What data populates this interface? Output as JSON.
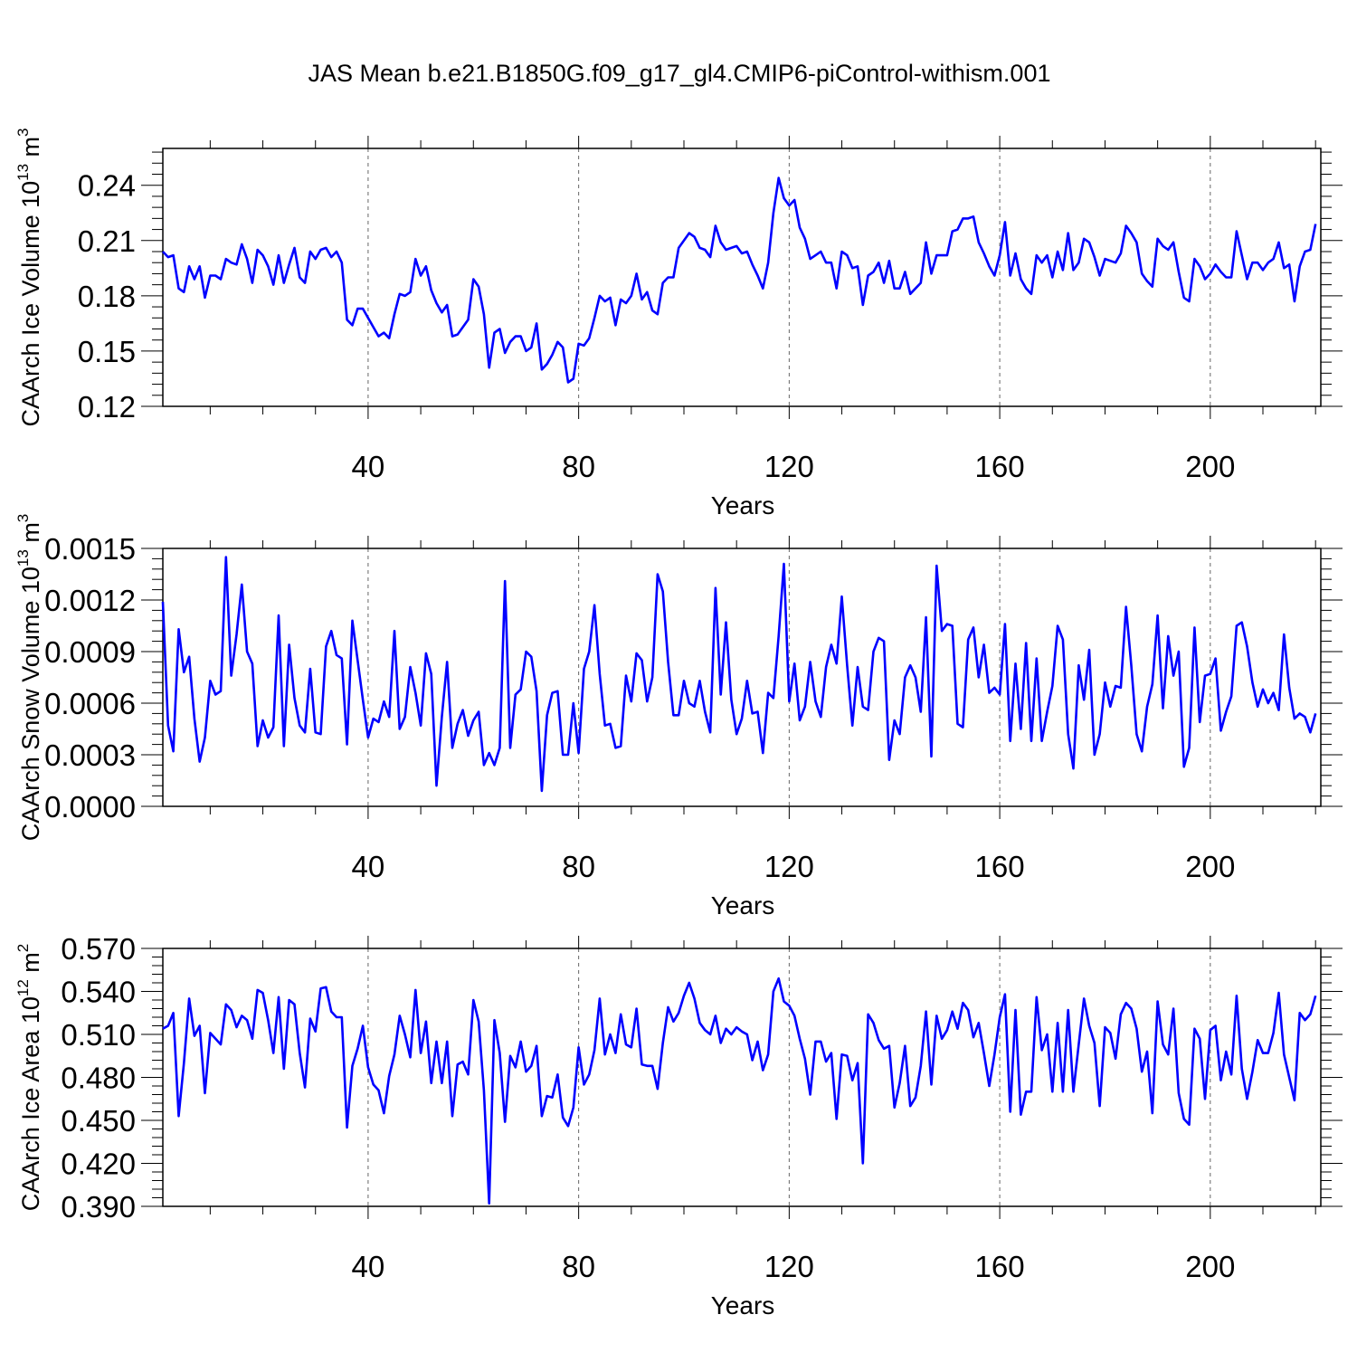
{
  "figure_title": "JAS Mean b.e21.B1850G.f09_g17_gl4.CMIP6-piControl-withism.001",
  "colors": {
    "series": "#0000ff",
    "axes": "#000000",
    "grid": "#666666",
    "background": "#ffffff"
  },
  "chart_data": [
    {
      "type": "line",
      "title": "JAS Mean b.e21.B1850G.f09_g17_gl4.CMIP6-piControl-withism.001",
      "xlabel": "Years",
      "ylabel": "CAArch Ice Volume 10",
      "ylabel_exp": "13",
      "ylabel_unit": " m",
      "ylabel_unit_exp": "3",
      "xlim": [
        1,
        221
      ],
      "ylim": [
        0.12,
        0.26
      ],
      "xticks": [
        40,
        80,
        120,
        160,
        200
      ],
      "xtick_labels": [
        "40",
        "80",
        "120",
        "160",
        "200"
      ],
      "yticks": [
        0.12,
        0.15,
        0.18,
        0.21,
        0.24
      ],
      "ytick_labels": [
        "0.12",
        "0.15",
        "0.18",
        "0.21",
        "0.24"
      ],
      "grid": "vertical dashed at major x ticks",
      "series": [
        {
          "name": "CAArch Ice Volume",
          "x_start": 1,
          "values": [
            0.204,
            0.201,
            0.202,
            0.184,
            0.182,
            0.196,
            0.189,
            0.196,
            0.179,
            0.191,
            0.191,
            0.189,
            0.2,
            0.198,
            0.197,
            0.208,
            0.2,
            0.187,
            0.205,
            0.202,
            0.196,
            0.186,
            0.202,
            0.187,
            0.197,
            0.206,
            0.19,
            0.187,
            0.204,
            0.2,
            0.205,
            0.206,
            0.201,
            0.204,
            0.198,
            0.167,
            0.164,
            0.173,
            0.173,
            0.168,
            0.163,
            0.158,
            0.16,
            0.157,
            0.17,
            0.181,
            0.18,
            0.182,
            0.2,
            0.191,
            0.196,
            0.183,
            0.176,
            0.171,
            0.175,
            0.158,
            0.159,
            0.163,
            0.167,
            0.189,
            0.185,
            0.17,
            0.141,
            0.16,
            0.162,
            0.149,
            0.155,
            0.158,
            0.158,
            0.15,
            0.152,
            0.165,
            0.14,
            0.143,
            0.148,
            0.155,
            0.152,
            0.133,
            0.135,
            0.154,
            0.153,
            0.157,
            0.168,
            0.18,
            0.177,
            0.179,
            0.164,
            0.178,
            0.176,
            0.18,
            0.192,
            0.178,
            0.182,
            0.172,
            0.17,
            0.187,
            0.19,
            0.19,
            0.206,
            0.21,
            0.214,
            0.212,
            0.206,
            0.205,
            0.201,
            0.218,
            0.209,
            0.205,
            0.206,
            0.207,
            0.203,
            0.204,
            0.197,
            0.191,
            0.184,
            0.198,
            0.225,
            0.244,
            0.233,
            0.229,
            0.232,
            0.217,
            0.211,
            0.2,
            0.202,
            0.204,
            0.198,
            0.198,
            0.184,
            0.204,
            0.202,
            0.195,
            0.196,
            0.175,
            0.191,
            0.193,
            0.198,
            0.187,
            0.199,
            0.184,
            0.184,
            0.193,
            0.181,
            0.184,
            0.187,
            0.209,
            0.192,
            0.202,
            0.202,
            0.202,
            0.215,
            0.216,
            0.222,
            0.222,
            0.223,
            0.209,
            0.203,
            0.196,
            0.191,
            0.202,
            0.22,
            0.191,
            0.203,
            0.189,
            0.184,
            0.181,
            0.202,
            0.198,
            0.202,
            0.19,
            0.204,
            0.194,
            0.214,
            0.194,
            0.198,
            0.211,
            0.209,
            0.201,
            0.191,
            0.2,
            0.199,
            0.198,
            0.203,
            0.218,
            0.214,
            0.209,
            0.192,
            0.188,
            0.185,
            0.211,
            0.207,
            0.205,
            0.209,
            0.193,
            0.179,
            0.177,
            0.2,
            0.196,
            0.189,
            0.192,
            0.197,
            0.193,
            0.19,
            0.19,
            0.215,
            0.202,
            0.189,
            0.198,
            0.198,
            0.194,
            0.198,
            0.2,
            0.209,
            0.195,
            0.197,
            0.177,
            0.196,
            0.204,
            0.205,
            0.219
          ]
        }
      ]
    },
    {
      "type": "line",
      "xlabel": "Years",
      "ylabel": "CAArch Snow Volume 10",
      "ylabel_exp": "13",
      "ylabel_unit": " m",
      "ylabel_unit_exp": "3",
      "xlim": [
        1,
        221
      ],
      "ylim": [
        0.0,
        0.0015
      ],
      "xticks": [
        40,
        80,
        120,
        160,
        200
      ],
      "xtick_labels": [
        "40",
        "80",
        "120",
        "160",
        "200"
      ],
      "yticks": [
        0.0,
        0.0003,
        0.0006,
        0.0009,
        0.0012,
        0.0015
      ],
      "ytick_labels": [
        "0.0000",
        "0.0003",
        "0.0006",
        "0.0009",
        "0.0012",
        "0.0015"
      ],
      "grid": "vertical dashed at major x ticks",
      "series": [
        {
          "name": "CAArch Snow Volume",
          "x_start": 1,
          "values": [
            0.00119,
            0.00047,
            0.00032,
            0.00103,
            0.00078,
            0.00087,
            0.00051,
            0.00026,
            0.0004,
            0.00073,
            0.00065,
            0.00067,
            0.00145,
            0.00076,
            0.001,
            0.00129,
            0.0009,
            0.00083,
            0.00035,
            0.0005,
            0.0004,
            0.00046,
            0.00111,
            0.00035,
            0.00094,
            0.00063,
            0.00047,
            0.00043,
            0.0008,
            0.00043,
            0.00042,
            0.00093,
            0.00102,
            0.00088,
            0.00086,
            0.00036,
            0.00108,
            0.00085,
            0.00062,
            0.0004,
            0.00051,
            0.00049,
            0.00061,
            0.00052,
            0.00102,
            0.00045,
            0.00052,
            0.00081,
            0.00066,
            0.00047,
            0.00089,
            0.00077,
            0.00012,
            0.00052,
            0.00084,
            0.00034,
            0.00048,
            0.00056,
            0.00041,
            0.0005,
            0.00055,
            0.00024,
            0.00031,
            0.00024,
            0.00034,
            0.00131,
            0.00034,
            0.00065,
            0.00068,
            0.0009,
            0.00087,
            0.00067,
            9e-05,
            0.00053,
            0.00066,
            0.00067,
            0.0003,
            0.0003,
            0.0006,
            0.00031,
            0.0008,
            0.0009,
            0.00117,
            0.00077,
            0.00047,
            0.00048,
            0.00034,
            0.00035,
            0.00076,
            0.00061,
            0.00089,
            0.00085,
            0.00061,
            0.00075,
            0.00135,
            0.00125,
            0.00084,
            0.00053,
            0.00053,
            0.00073,
            0.0006,
            0.00058,
            0.00073,
            0.00055,
            0.00043,
            0.00127,
            0.00065,
            0.00107,
            0.00062,
            0.00042,
            0.00051,
            0.00073,
            0.00054,
            0.00055,
            0.00031,
            0.00066,
            0.00063,
            0.00099,
            0.00141,
            0.00061,
            0.00083,
            0.0005,
            0.00058,
            0.00084,
            0.00061,
            0.00052,
            0.00081,
            0.00094,
            0.00083,
            0.00122,
            0.00082,
            0.00047,
            0.00081,
            0.00058,
            0.00056,
            0.0009,
            0.00098,
            0.00096,
            0.00027,
            0.0005,
            0.00042,
            0.00075,
            0.00082,
            0.00075,
            0.00055,
            0.0011,
            0.00029,
            0.0014,
            0.00102,
            0.00106,
            0.00105,
            0.00048,
            0.00046,
            0.00097,
            0.00104,
            0.00075,
            0.00094,
            0.00066,
            0.00069,
            0.00065,
            0.00106,
            0.00038,
            0.00083,
            0.00045,
            0.00095,
            0.00038,
            0.00086,
            0.00038,
            0.00055,
            0.0007,
            0.00105,
            0.00097,
            0.00042,
            0.00022,
            0.00082,
            0.00062,
            0.00091,
            0.0003,
            0.00042,
            0.00072,
            0.00058,
            0.0007,
            0.00069,
            0.00116,
            0.00082,
            0.00042,
            0.00032,
            0.00058,
            0.00071,
            0.00111,
            0.00057,
            0.00099,
            0.00076,
            0.0009,
            0.00023,
            0.00034,
            0.00104,
            0.00049,
            0.00076,
            0.00077,
            0.00086,
            0.00044,
            0.00055,
            0.00064,
            0.00105,
            0.00107,
            0.00093,
            0.00072,
            0.00058,
            0.00068,
            0.0006,
            0.00066,
            0.00056,
            0.001,
            0.00069,
            0.00051,
            0.00054,
            0.00052,
            0.00043,
            0.00054
          ]
        }
      ]
    },
    {
      "type": "line",
      "xlabel": "Years",
      "ylabel": "CAArch Ice Area 10",
      "ylabel_exp": "12",
      "ylabel_unit": " m",
      "ylabel_unit_exp": "2",
      "xlim": [
        1,
        221
      ],
      "ylim": [
        0.39,
        0.57
      ],
      "xticks": [
        40,
        80,
        120,
        160,
        200
      ],
      "xtick_labels": [
        "40",
        "80",
        "120",
        "160",
        "200"
      ],
      "yticks": [
        0.39,
        0.42,
        0.45,
        0.48,
        0.51,
        0.54,
        0.57
      ],
      "ytick_labels": [
        "0.390",
        "0.420",
        "0.450",
        "0.480",
        "0.510",
        "0.540",
        "0.570"
      ],
      "grid": "vertical dashed at major x ticks",
      "series": [
        {
          "name": "CAArch Ice Area",
          "x_start": 1,
          "values": [
            0.514,
            0.516,
            0.525,
            0.453,
            0.49,
            0.535,
            0.509,
            0.516,
            0.469,
            0.511,
            0.507,
            0.503,
            0.531,
            0.527,
            0.515,
            0.523,
            0.52,
            0.507,
            0.541,
            0.539,
            0.52,
            0.497,
            0.536,
            0.486,
            0.534,
            0.531,
            0.497,
            0.473,
            0.521,
            0.512,
            0.542,
            0.543,
            0.526,
            0.522,
            0.522,
            0.445,
            0.488,
            0.5,
            0.516,
            0.487,
            0.475,
            0.471,
            0.455,
            0.481,
            0.496,
            0.523,
            0.51,
            0.494,
            0.541,
            0.497,
            0.519,
            0.476,
            0.505,
            0.476,
            0.505,
            0.453,
            0.489,
            0.491,
            0.482,
            0.534,
            0.519,
            0.471,
            0.392,
            0.52,
            0.497,
            0.449,
            0.495,
            0.487,
            0.505,
            0.484,
            0.488,
            0.502,
            0.453,
            0.467,
            0.466,
            0.482,
            0.452,
            0.446,
            0.459,
            0.501,
            0.475,
            0.482,
            0.499,
            0.535,
            0.496,
            0.51,
            0.497,
            0.524,
            0.503,
            0.501,
            0.528,
            0.489,
            0.488,
            0.488,
            0.472,
            0.504,
            0.529,
            0.519,
            0.525,
            0.537,
            0.546,
            0.535,
            0.518,
            0.513,
            0.51,
            0.523,
            0.504,
            0.514,
            0.51,
            0.515,
            0.512,
            0.51,
            0.492,
            0.505,
            0.485,
            0.496,
            0.54,
            0.549,
            0.533,
            0.53,
            0.523,
            0.507,
            0.493,
            0.468,
            0.505,
            0.505,
            0.491,
            0.497,
            0.451,
            0.496,
            0.495,
            0.478,
            0.49,
            0.42,
            0.524,
            0.518,
            0.506,
            0.5,
            0.502,
            0.459,
            0.476,
            0.502,
            0.46,
            0.466,
            0.488,
            0.526,
            0.475,
            0.523,
            0.507,
            0.513,
            0.526,
            0.514,
            0.532,
            0.527,
            0.508,
            0.518,
            0.497,
            0.474,
            0.496,
            0.522,
            0.538,
            0.456,
            0.527,
            0.454,
            0.47,
            0.47,
            0.536,
            0.499,
            0.51,
            0.47,
            0.518,
            0.47,
            0.527,
            0.47,
            0.503,
            0.535,
            0.516,
            0.504,
            0.46,
            0.515,
            0.511,
            0.493,
            0.524,
            0.532,
            0.528,
            0.514,
            0.484,
            0.498,
            0.455,
            0.533,
            0.503,
            0.496,
            0.528,
            0.469,
            0.451,
            0.447,
            0.514,
            0.507,
            0.465,
            0.513,
            0.516,
            0.478,
            0.498,
            0.482,
            0.537,
            0.486,
            0.465,
            0.484,
            0.506,
            0.497,
            0.497,
            0.511,
            0.539,
            0.496,
            0.48,
            0.464,
            0.525,
            0.52,
            0.524,
            0.537
          ]
        }
      ]
    }
  ]
}
